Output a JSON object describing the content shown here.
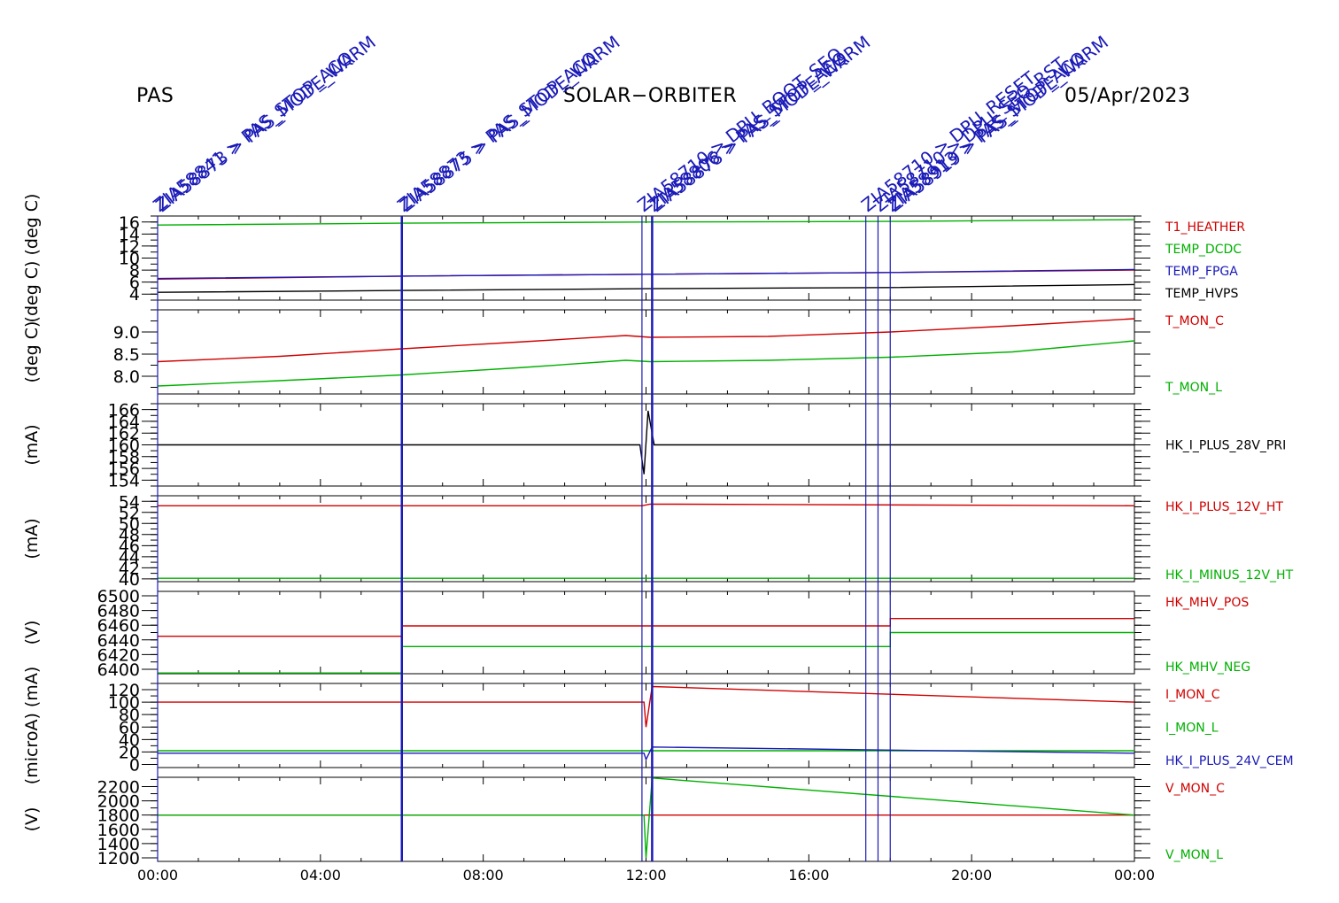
{
  "header": {
    "left": "PAS",
    "center": "SOLAR−ORBITER",
    "right": "05/Apr/2023"
  },
  "colors": {
    "red": "#d00000",
    "green": "#00b000",
    "blue": "#1a1ab8",
    "black": "#000000",
    "event_line": "#1a1ab8"
  },
  "chart_data": {
    "type": "line",
    "x_axis": {
      "ticks": [
        "00:00",
        "04:00",
        "08:00",
        "12:00",
        "16:00",
        "20:00",
        "00:00"
      ],
      "range_hours": [
        0,
        24
      ]
    },
    "events": [
      {
        "t": 0.0,
        "labels": [
          "ZIA58841 > PAS_STOP_ACQ",
          "ZIA58873 > PAS_MODE_WARM"
        ]
      },
      {
        "t": 6.0,
        "labels": [
          "ZIA58873 > PAS_STOP_ACQ",
          "ZIA58875 > PAS_MODE_WARM"
        ]
      },
      {
        "t": 11.9,
        "labels": [
          "ZIA58710 > DPU_BOOT_SEQ"
        ]
      },
      {
        "t": 12.15,
        "labels": [
          "ZIA58806 > PAS_STOP_ACQ",
          "ZIA58878 > PAS_MODE_WARM"
        ]
      },
      {
        "t": 17.4,
        "labels": [
          "ZIA58710 > DPU_RESET"
        ]
      },
      {
        "t": 17.7,
        "labels": [
          "ZIA58710 > DPU_SEQ_RST"
        ]
      },
      {
        "t": 18.0,
        "labels": [
          "ZIA58913 > PAS_STOP_ACQ",
          "ZIA58919 > PAS_MODE_WARM"
        ]
      }
    ],
    "panels": [
      {
        "ylabel": "(deg C)  (deg C)",
        "yrange": [
          3,
          17
        ],
        "yticks": [
          "16",
          "14",
          "12",
          "10",
          "8",
          "6",
          "4"
        ],
        "ytick_values": [
          16,
          14,
          12,
          10,
          8,
          6,
          4
        ],
        "series": [
          {
            "name": "T1_HEATHER",
            "color": "red",
            "x": [
              0,
              6,
              12,
              18,
              24
            ],
            "y": [
              6.5,
              7.0,
              7.3,
              7.6,
              8.0
            ]
          },
          {
            "name": "TEMP_DCDC",
            "color": "green",
            "x": [
              0,
              6,
              12,
              18,
              24
            ],
            "y": [
              15.5,
              15.8,
              16.0,
              16.1,
              16.4
            ]
          },
          {
            "name": "TEMP_FPGA",
            "color": "blue",
            "x": [
              0,
              6,
              12,
              18,
              24
            ],
            "y": [
              6.6,
              7.0,
              7.3,
              7.6,
              8.1
            ]
          },
          {
            "name": "TEMP_HVPS",
            "color": "black",
            "x": [
              0,
              6,
              12,
              18,
              24
            ],
            "y": [
              4.3,
              4.6,
              4.9,
              5.1,
              5.6
            ]
          }
        ]
      },
      {
        "ylabel": "(deg C)",
        "yrange": [
          7.6,
          9.5
        ],
        "yticks": [
          "9.0",
          "8.5",
          "8.0"
        ],
        "ytick_values": [
          9.0,
          8.5,
          8.0
        ],
        "series": [
          {
            "name": "T_MON_C",
            "color": "red",
            "x": [
              0,
              3,
              6,
              9,
              11.5,
              12.1,
              15,
              18,
              21,
              24
            ],
            "y": [
              8.33,
              8.45,
              8.62,
              8.78,
              8.92,
              8.88,
              8.9,
              9.0,
              9.14,
              9.3
            ]
          },
          {
            "name": "T_MON_L",
            "color": "green",
            "x": [
              0,
              3,
              6,
              9,
              11.5,
              12.1,
              15,
              18,
              21,
              24
            ],
            "y": [
              7.78,
              7.9,
              8.03,
              8.2,
              8.36,
              8.33,
              8.36,
              8.43,
              8.55,
              8.8
            ]
          }
        ]
      },
      {
        "ylabel": "(mA)",
        "yrange": [
          153,
          167
        ],
        "yticks": [
          "166",
          "164",
          "162",
          "160",
          "158",
          "156",
          "154"
        ],
        "ytick_values": [
          166,
          164,
          162,
          160,
          158,
          156,
          154
        ],
        "series": [
          {
            "name": "HK_I_PLUS_28V_PRI",
            "color": "black",
            "x": [
              0,
              11.85,
              11.95,
              12.05,
              12.2,
              24
            ],
            "y": [
              160.0,
              160.0,
              155,
              165.8,
              160.0,
              160.0
            ]
          }
        ]
      },
      {
        "ylabel": "(mA)",
        "yrange": [
          39.5,
          55
        ],
        "yticks": [
          "54",
          "52",
          "50",
          "48",
          "46",
          "44",
          "42",
          "40"
        ],
        "ytick_values": [
          54,
          52,
          50,
          48,
          46,
          44,
          42,
          40
        ],
        "series": [
          {
            "name": "HK_I_PLUS_12V_HT",
            "color": "red",
            "x": [
              0,
              11.9,
              12.1,
              24
            ],
            "y": [
              53.2,
              53.2,
              53.5,
              53.2
            ]
          },
          {
            "name": "HK_I_MINUS_12V_HT",
            "color": "green",
            "x": [
              0,
              24
            ],
            "y": [
              40.1,
              40.1
            ]
          }
        ]
      },
      {
        "ylabel": "(V)",
        "yrange": [
          6394,
          6506
        ],
        "yticks": [
          "6500",
          "6480",
          "6460",
          "6440",
          "6420",
          "6400"
        ],
        "ytick_values": [
          6500,
          6480,
          6460,
          6440,
          6420,
          6400
        ],
        "series": [
          {
            "name": "HK_MHV_POS",
            "color": "red",
            "x": [
              0,
              6,
              6,
              18,
              18,
              24
            ],
            "y": [
              6445,
              6445,
              6459,
              6459,
              6469,
              6469
            ]
          },
          {
            "name": "HK_MHV_NEG",
            "color": "green",
            "x": [
              0,
              6,
              6,
              18,
              18,
              24
            ],
            "y": [
              6395,
              6395,
              6431,
              6431,
              6450,
              6450
            ]
          }
        ]
      },
      {
        "ylabel": "(microA) (mA)",
        "yrange": [
          -5,
          130
        ],
        "yticks": [
          "120",
          "100",
          "80",
          "60",
          "40",
          "20",
          "0"
        ],
        "ytick_values": [
          120,
          100,
          80,
          60,
          40,
          20,
          0
        ],
        "series": [
          {
            "name": "I_MON_C",
            "color": "red",
            "x": [
              0,
              11.95,
              12.0,
              12.15,
              24
            ],
            "y": [
              100,
              100,
              60,
              125,
              100
            ]
          },
          {
            "name": "I_MON_L",
            "color": "green",
            "x": [
              0,
              24
            ],
            "y": [
              22,
              22
            ]
          },
          {
            "name": "HK_I_PLUS_24V_CEM",
            "color": "blue",
            "x": [
              0,
              11.95,
              12.0,
              12.15,
              24
            ],
            "y": [
              18,
              18,
              8,
              28,
              18
            ]
          }
        ]
      },
      {
        "ylabel": "(V)",
        "yrange": [
          1150,
          2330
        ],
        "yticks": [
          "2200",
          "2000",
          "1800",
          "1600",
          "1400",
          "1200"
        ],
        "ytick_values": [
          2200,
          2000,
          1800,
          1600,
          1400,
          1200
        ],
        "series": [
          {
            "name": "V_MON_C",
            "color": "red",
            "x": [
              0,
              24
            ],
            "y": [
              1800,
              1800
            ]
          },
          {
            "name": "V_MON_L",
            "color": "green",
            "x": [
              0,
              11.95,
              12.0,
              12.15,
              24
            ],
            "y": [
              1800,
              1800,
              1200,
              2320,
              1800
            ]
          }
        ]
      }
    ]
  }
}
